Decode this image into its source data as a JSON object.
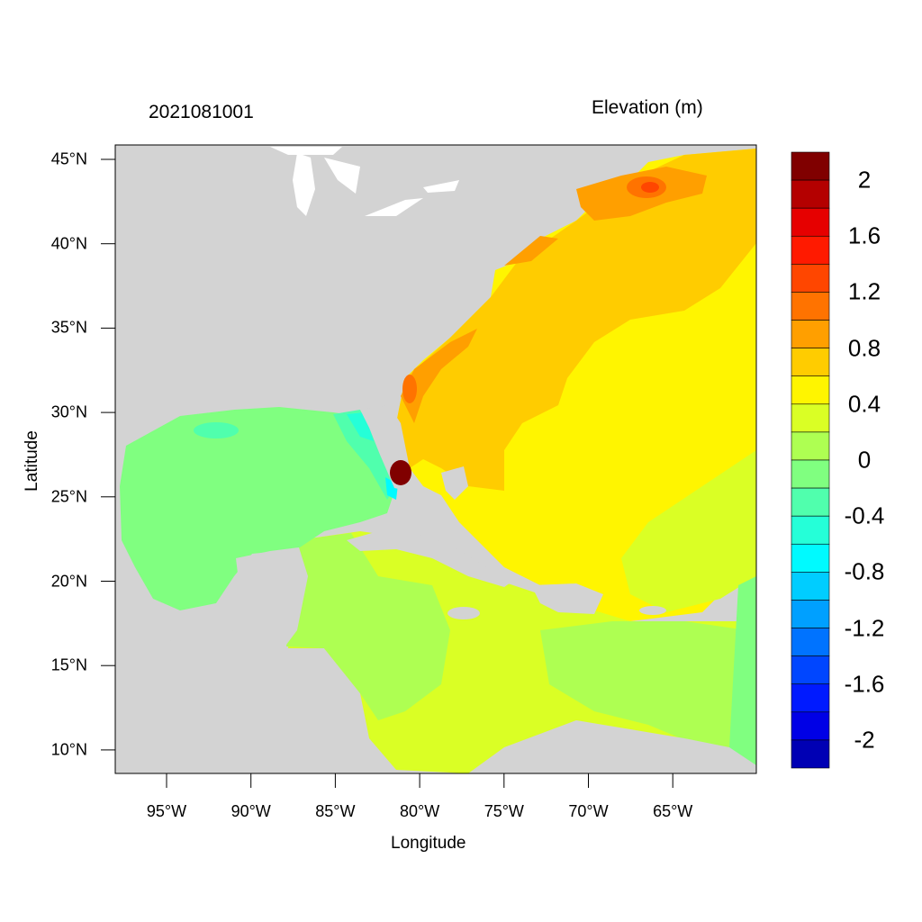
{
  "title_left": "2021081001",
  "title_right": "Elevation (m)",
  "x_axis": {
    "label": "Longitude",
    "ticks": [
      "95°W",
      "90°W",
      "85°W",
      "80°W",
      "75°W",
      "70°W",
      "65°W"
    ]
  },
  "y_axis": {
    "label": "Latitude",
    "ticks": [
      "45°N",
      "40°N",
      "35°N",
      "30°N",
      "25°N",
      "20°N",
      "15°N",
      "10°N"
    ]
  },
  "map": {
    "extent_lon": [
      -98,
      -60
    ],
    "extent_lat": [
      8.6,
      45.8
    ],
    "land_color": "#D3D3D3",
    "lake_color": "#FFFFFF"
  },
  "colorbar": {
    "labels": [
      "2",
      "1.6",
      "1.2",
      "0.8",
      "0.4",
      "0",
      "-0.4",
      "-0.8",
      "-1.2",
      "-1.6",
      "-2"
    ],
    "colors": [
      "#800000",
      "#B40000",
      "#E60000",
      "#FF1A00",
      "#FF4600",
      "#FF7300",
      "#FF9F00",
      "#FFCC00",
      "#FFF500",
      "#DAFF25",
      "#AEFF52",
      "#80FF80",
      "#50FFAD",
      "#25FFD8",
      "#00FAFF",
      "#00CDFF",
      "#00A0FF",
      "#0073FF",
      "#0046FF",
      "#001AFF",
      "#0000E6",
      "#0000B4"
    ]
  }
}
